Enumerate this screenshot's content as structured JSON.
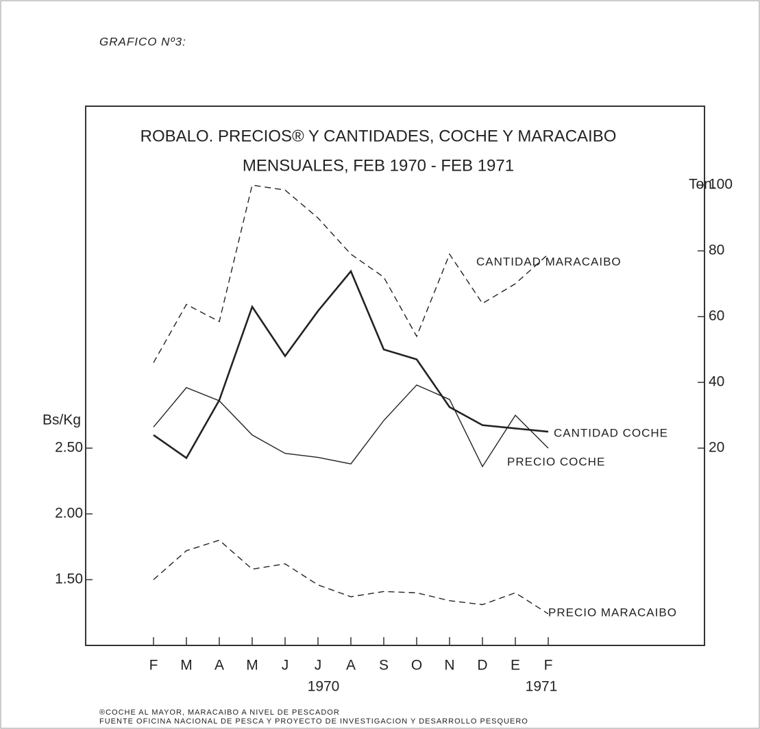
{
  "chart_data": {
    "type": "line",
    "heading": "GRAFICO Nº3:",
    "title": [
      "ROBALO. PRECIOS® Y CANTIDADES, COCHE Y MARACAIBO",
      "MENSUALES, FEB 1970 - FEB 1971"
    ],
    "ylabel": "Bs/Kg",
    "y2label": "Ton.",
    "categories": [
      "F",
      "M",
      "A",
      "M",
      "J",
      "J",
      "A",
      "S",
      "O",
      "N",
      "D",
      "E",
      "F"
    ],
    "annotations": [
      "1970",
      "1971"
    ],
    "ylim": [
      1.0,
      5.1
    ],
    "yticks": [
      {
        "value": 1.5,
        "label": "1.50"
      },
      {
        "value": 2.0,
        "label": "2.00"
      },
      {
        "value": 2.5,
        "label": "2.50"
      }
    ],
    "y2lim": [
      -40,
      124
    ],
    "y2ticks": [
      20,
      40,
      60,
      80,
      100
    ],
    "series": [
      {
        "name": "CANTIDAD MARACAIBO",
        "color": "#222",
        "dashed": true,
        "axis": "y2",
        "values": [
          46,
          63.7,
          58.5,
          100,
          98.5,
          90,
          79,
          72,
          54,
          79,
          64,
          70,
          79
        ]
      },
      {
        "name": "CANTIDAD COCHE",
        "color": "#222",
        "dashed": false,
        "bold": true,
        "axis": "y2",
        "values": [
          24,
          17,
          34.6,
          63,
          48,
          61.7,
          73.8,
          50,
          47,
          32.5,
          27,
          26,
          25
        ]
      },
      {
        "name": "PRECIO COCHE",
        "color": "#222",
        "dashed": false,
        "values": [
          2.66,
          2.96,
          2.86,
          2.6,
          2.46,
          2.43,
          2.38,
          2.71,
          2.98,
          2.87,
          2.36,
          2.75,
          2.5
        ]
      },
      {
        "name": "PRECIO MARACAIBO",
        "color": "#222",
        "dashed": true,
        "values": [
          1.5,
          1.72,
          1.8,
          1.58,
          1.62,
          1.46,
          1.37,
          1.41,
          1.4,
          1.34,
          1.31,
          1.4,
          1.24
        ]
      }
    ],
    "footnotes": [
      "®COCHE AL MAYOR, MARACAIBO A NIVEL DE PESCADOR",
      "FUENTE OFICINA NACIONAL DE PESCA Y PROYECTO DE INVESTIGACION Y DESARROLLO PESQUERO"
    ]
  }
}
